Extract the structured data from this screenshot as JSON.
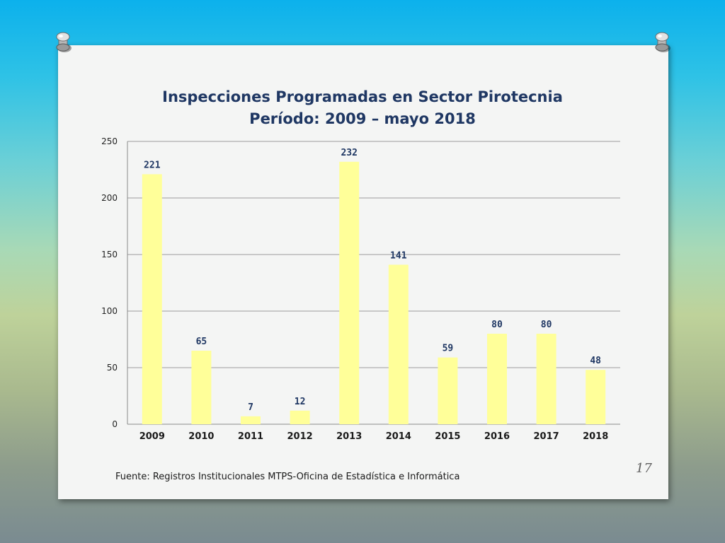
{
  "slide": {
    "source_note": "Fuente: Registros Institucionales MTPS-Oficina de Estadística e Informática",
    "slide_number": "17",
    "colors": {
      "background_top": "#0cb1ec",
      "card": "#f4f5f4",
      "title": "#1f3763"
    }
  },
  "chart_data": {
    "type": "bar",
    "title": "Inspecciones Programadas en  Sector Pirotecnia",
    "subtitle": "Período: 2009 – mayo 2018",
    "categories": [
      "2009",
      "2010",
      "2011",
      "2012",
      "2013",
      "2014",
      "2015",
      "2016",
      "2017",
      "2018"
    ],
    "series": [
      {
        "values": [
          221,
          65,
          7,
          12,
          232,
          141,
          59,
          80,
          80,
          48
        ],
        "color": "#ffff99"
      }
    ],
    "data_labels": [
      "221",
      "65",
      "7",
      "12",
      "232",
      "141",
      "59",
      "80",
      "80",
      "48"
    ],
    "ylim": [
      0,
      250
    ],
    "yticks": [
      0,
      50,
      100,
      150,
      200,
      250
    ],
    "xlabel": "",
    "ylabel": "",
    "grid": true,
    "legend": "none"
  }
}
